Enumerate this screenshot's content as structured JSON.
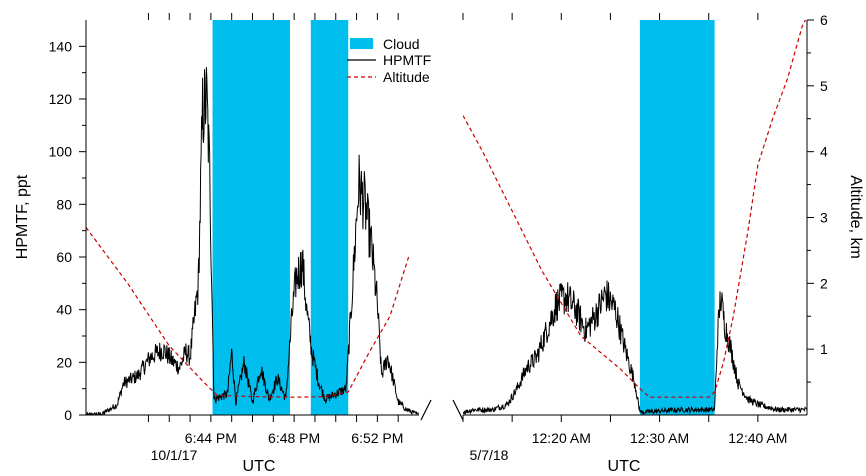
{
  "chart_data": {
    "type": "line",
    "y_left": {
      "label": "HPMTF, ppt",
      "ticks": [
        0,
        20,
        40,
        60,
        80,
        100,
        120,
        140
      ],
      "range": [
        0,
        150
      ]
    },
    "y_right": {
      "label": "Altitude, km",
      "ticks": [
        1,
        2,
        3,
        4,
        5,
        6
      ],
      "range": [
        0,
        6
      ]
    },
    "legend": {
      "placement": "top-center",
      "items": [
        {
          "key": "cloud",
          "label": "Cloud",
          "color": "#00BFEF",
          "style": "fill"
        },
        {
          "key": "hpmtf",
          "label": "HPMTF",
          "color": "#000000",
          "style": "line"
        },
        {
          "key": "alt",
          "label": "Altitude",
          "color": "#CC0000",
          "style": "dashed"
        }
      ]
    },
    "colors": {
      "cloud": "#00BFEF",
      "hpmtf": "#000000",
      "altitude": "#CC0000"
    },
    "panels": [
      {
        "id": "left",
        "xlabel": "UTC",
        "date_label": "10/1/17",
        "x_range_min": [
          -6,
          10
        ],
        "x_ticks_min": [
          -3,
          -2,
          -1,
          0,
          1,
          2,
          3,
          4,
          5,
          6,
          7,
          8,
          9
        ],
        "x_tick_labels": [
          {
            "min": 0,
            "text": "6:44 PM"
          },
          {
            "min": 4,
            "text": "6:48 PM"
          },
          {
            "min": 8,
            "text": "6:52 PM"
          }
        ],
        "cloud_intervals_min": [
          [
            0.08,
            3.8
          ],
          [
            4.8,
            6.6
          ]
        ],
        "hpmtf_keypoints": [
          [
            -6.0,
            0
          ],
          [
            -5.2,
            0.5
          ],
          [
            -4.5,
            4
          ],
          [
            -4.2,
            12
          ],
          [
            -3.5,
            15
          ],
          [
            -2.9,
            22
          ],
          [
            -2.3,
            25
          ],
          [
            -1.8,
            20
          ],
          [
            -1.5,
            18
          ],
          [
            -1.2,
            24
          ],
          [
            -1.0,
            22
          ],
          [
            -0.6,
            50
          ],
          [
            -0.4,
            115
          ],
          [
            -0.2,
            120
          ],
          [
            -0.05,
            90
          ],
          [
            0.15,
            6
          ],
          [
            0.8,
            8
          ],
          [
            1.0,
            24
          ],
          [
            1.2,
            5
          ],
          [
            1.6,
            20
          ],
          [
            2.0,
            5
          ],
          [
            2.4,
            18
          ],
          [
            2.8,
            6
          ],
          [
            3.2,
            14
          ],
          [
            3.6,
            6
          ],
          [
            3.9,
            38
          ],
          [
            4.1,
            52
          ],
          [
            4.4,
            58
          ],
          [
            4.6,
            40
          ],
          [
            4.85,
            24
          ],
          [
            5.2,
            12
          ],
          [
            5.5,
            6
          ],
          [
            6.0,
            8
          ],
          [
            6.5,
            10
          ],
          [
            6.7,
            35
          ],
          [
            7.1,
            88
          ],
          [
            7.4,
            80
          ],
          [
            7.7,
            65
          ],
          [
            8.0,
            42
          ],
          [
            8.2,
            15
          ],
          [
            8.5,
            22
          ],
          [
            8.8,
            12
          ],
          [
            9.0,
            5
          ],
          [
            9.4,
            2
          ],
          [
            10.0,
            0
          ]
        ],
        "altitude_keypoints": [
          [
            -6.0,
            2.85
          ],
          [
            -4.0,
            2.0
          ],
          [
            -2.0,
            1.05
          ],
          [
            -0.5,
            0.55
          ],
          [
            0.3,
            0.3
          ],
          [
            2.0,
            0.28
          ],
          [
            4.0,
            0.27
          ],
          [
            5.5,
            0.28
          ],
          [
            6.6,
            0.35
          ],
          [
            7.6,
            0.95
          ],
          [
            8.6,
            1.5
          ],
          [
            9.5,
            2.4
          ]
        ]
      },
      {
        "id": "right",
        "xlabel": "UTC",
        "date_label": "5/7/18",
        "x_range_min": [
          -10,
          25
        ],
        "x_ticks_min": [
          -10,
          -5,
          0,
          5,
          10,
          15,
          20
        ],
        "x_tick_labels": [
          {
            "min": 0,
            "text": "12:20 AM"
          },
          {
            "min": 10,
            "text": "12:30 AM"
          },
          {
            "min": 20,
            "text": "12:40 AM"
          }
        ],
        "cloud_intervals_min": [
          [
            8.0,
            15.6
          ]
        ],
        "hpmtf_keypoints": [
          [
            -10.0,
            1
          ],
          [
            -9.0,
            2
          ],
          [
            -7.0,
            2
          ],
          [
            -5.5,
            4
          ],
          [
            -4.5,
            10
          ],
          [
            -3.5,
            18
          ],
          [
            -2.5,
            22
          ],
          [
            -1.5,
            32
          ],
          [
            -0.5,
            42
          ],
          [
            0.5,
            45
          ],
          [
            1.5,
            40
          ],
          [
            2.5,
            32
          ],
          [
            3.5,
            38
          ],
          [
            4.5,
            46
          ],
          [
            5.5,
            40
          ],
          [
            6.5,
            25
          ],
          [
            7.5,
            12
          ],
          [
            7.9,
            3
          ],
          [
            8.1,
            1
          ],
          [
            12.0,
            2
          ],
          [
            15.6,
            2
          ],
          [
            15.9,
            30
          ],
          [
            16.2,
            45
          ],
          [
            16.6,
            35
          ],
          [
            17.2,
            26
          ],
          [
            18.0,
            12
          ],
          [
            19.0,
            6
          ],
          [
            20.0,
            4
          ],
          [
            22.0,
            2
          ],
          [
            24.0,
            2
          ],
          [
            25.0,
            2
          ]
        ],
        "altitude_keypoints": [
          [
            -10.0,
            4.55
          ],
          [
            -8.0,
            4.0
          ],
          [
            -6.0,
            3.4
          ],
          [
            -4.0,
            2.8
          ],
          [
            -2.0,
            2.2
          ],
          [
            0.0,
            1.7
          ],
          [
            2.0,
            1.2
          ],
          [
            4.0,
            0.95
          ],
          [
            6.0,
            0.7
          ],
          [
            8.0,
            0.4
          ],
          [
            9.0,
            0.27
          ],
          [
            12.0,
            0.27
          ],
          [
            15.0,
            0.27
          ],
          [
            15.6,
            0.35
          ],
          [
            16.5,
            0.8
          ],
          [
            17.5,
            1.5
          ],
          [
            19.0,
            2.8
          ],
          [
            20.0,
            3.8
          ],
          [
            21.5,
            4.5
          ],
          [
            23.0,
            5.1
          ],
          [
            24.5,
            5.9
          ],
          [
            25.0,
            6.05
          ]
        ]
      }
    ]
  }
}
